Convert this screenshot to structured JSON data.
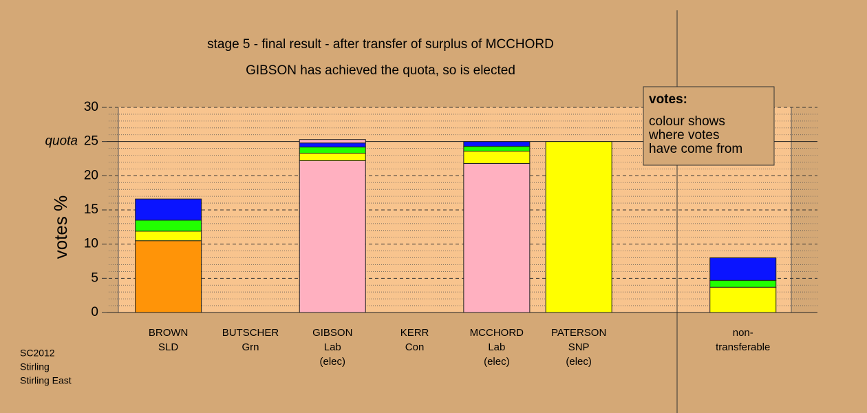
{
  "chart_data": {
    "type": "stacked_bar",
    "title": "stage 5 - final result - after transfer of surplus of MCCHORD",
    "subtitle": "GIBSON has achieved the quota, so is elected",
    "y_label": "votes %",
    "categories": [
      [
        "BROWN",
        "SLD"
      ],
      [
        "BUTSCHER",
        "Grn"
      ],
      [
        "GIBSON",
        "Lab",
        "(elec)"
      ],
      [
        "KERR",
        "Con"
      ],
      [
        "MCCHORD",
        "Lab",
        "(elec)"
      ],
      [
        "PATERSON",
        "SNP",
        "(elec)"
      ],
      null,
      [
        "non-",
        "transferable"
      ]
    ],
    "series": [
      {
        "color": "#ff9408",
        "values": [
          10.5,
          0,
          0,
          0,
          0,
          0,
          null,
          0
        ]
      },
      {
        "color": "#ffb0c0",
        "values": [
          0,
          0,
          22.2,
          0,
          21.8,
          0,
          null,
          0
        ]
      },
      {
        "color": "#ffff00",
        "values": [
          1.4,
          0,
          1.1,
          0,
          1.8,
          25.0,
          null,
          3.7
        ]
      },
      {
        "color": "#22ff00",
        "values": [
          1.6,
          0,
          0.9,
          0,
          0.7,
          0,
          null,
          1.0
        ]
      },
      {
        "color": "#0a14ff",
        "values": [
          3.1,
          0,
          0.6,
          0,
          0.7,
          0,
          null,
          3.3
        ]
      },
      {
        "color": "#ffb0c0",
        "values": [
          0,
          0,
          0.5,
          0,
          0,
          0,
          null,
          0
        ]
      }
    ],
    "ylim": [
      0,
      30
    ],
    "yticks": [
      0,
      5,
      10,
      15,
      20,
      25,
      30
    ],
    "minor_yticks": [
      1,
      2,
      3,
      4,
      6,
      7,
      8,
      9,
      11,
      12,
      13,
      14,
      16,
      17,
      18,
      19,
      21,
      22,
      23,
      24,
      26,
      27,
      28,
      29
    ],
    "quota": {
      "value": 25,
      "label": "quota"
    },
    "grid": true,
    "annotation": {
      "heading": "votes:",
      "lines": [
        "colour shows",
        "where votes",
        "have come from"
      ]
    },
    "footer": [
      "SC2012",
      "Stirling",
      "Stirling East"
    ]
  }
}
